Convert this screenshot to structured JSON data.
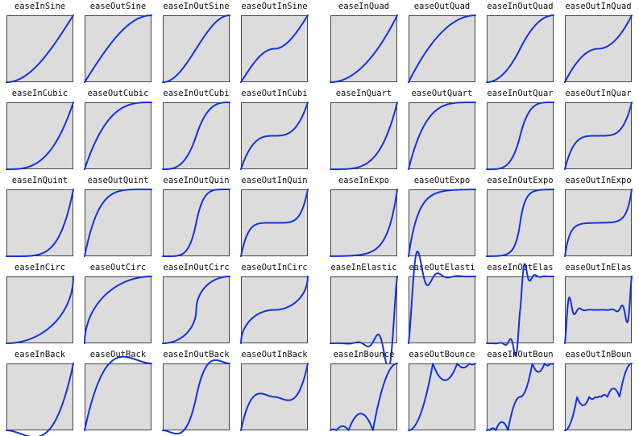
{
  "colors": {
    "curve": "#1133dd",
    "panel": "#dcdcdc",
    "frame": "#444444"
  },
  "plots": [
    {
      "title": "easeInSine",
      "fn": "easeInSine"
    },
    {
      "title": "easeOutSine",
      "fn": "easeOutSine"
    },
    {
      "title": "easeInOutSine",
      "fn": "easeInOutSine"
    },
    {
      "title": "easeOutInSine",
      "fn": "easeOutInSine"
    },
    {
      "title": "easeInQuad",
      "fn": "easeInQuad"
    },
    {
      "title": "easeOutQuad",
      "fn": "easeOutQuad"
    },
    {
      "title": "easeInOutQuad",
      "fn": "easeInOutQuad"
    },
    {
      "title": "easeOutInQuad",
      "fn": "easeOutInQuad"
    },
    {
      "title": "easeInCubic",
      "fn": "easeInCubic"
    },
    {
      "title": "easeOutCubic",
      "fn": "easeOutCubic"
    },
    {
      "title": "easeInOutCubi",
      "fn": "easeInOutCubic"
    },
    {
      "title": "easeOutInCubi",
      "fn": "easeOutInCubic"
    },
    {
      "title": "easeInQuart",
      "fn": "easeInQuart"
    },
    {
      "title": "easeOutQuart",
      "fn": "easeOutQuart"
    },
    {
      "title": "easeInOutQuar",
      "fn": "easeInOutQuart"
    },
    {
      "title": "easeOutInQuar",
      "fn": "easeOutInQuart"
    },
    {
      "title": "easeInQuint",
      "fn": "easeInQuint"
    },
    {
      "title": "easeOutQuint",
      "fn": "easeOutQuint"
    },
    {
      "title": "easeInOutQuin",
      "fn": "easeInOutQuint"
    },
    {
      "title": "easeOutInQuin",
      "fn": "easeOutInQuint"
    },
    {
      "title": "easeInExpo",
      "fn": "easeInExpo"
    },
    {
      "title": "easeOutExpo",
      "fn": "easeOutExpo"
    },
    {
      "title": "easeInOutExpo",
      "fn": "easeInOutExpo"
    },
    {
      "title": "easeOutInExpo",
      "fn": "easeOutInExpo"
    },
    {
      "title": "easeInCirc",
      "fn": "easeInCirc"
    },
    {
      "title": "easeOutCirc",
      "fn": "easeOutCirc"
    },
    {
      "title": "easeInOutCirc",
      "fn": "easeInOutCirc"
    },
    {
      "title": "easeOutInCirc",
      "fn": "easeOutInCirc"
    },
    {
      "title": "easeInElastic",
      "fn": "easeInElastic"
    },
    {
      "title": "easeOutElasti",
      "fn": "easeOutElastic"
    },
    {
      "title": "easeInOutElas",
      "fn": "easeInOutElastic"
    },
    {
      "title": "easeOutInElas",
      "fn": "easeOutInElastic"
    },
    {
      "title": "easeInBack",
      "fn": "easeInBack"
    },
    {
      "title": "easeOutBack",
      "fn": "easeOutBack"
    },
    {
      "title": "easeInOutBack",
      "fn": "easeInOutBack"
    },
    {
      "title": "easeOutInBack",
      "fn": "easeOutInBack"
    },
    {
      "title": "easeInBounce",
      "fn": "easeInBounce"
    },
    {
      "title": "easeOutBounce",
      "fn": "easeOutBounce"
    },
    {
      "title": "easeInOutBoun",
      "fn": "easeInOutBounce"
    },
    {
      "title": "easeOutInBoun",
      "fn": "easeOutInBounce"
    }
  ]
}
